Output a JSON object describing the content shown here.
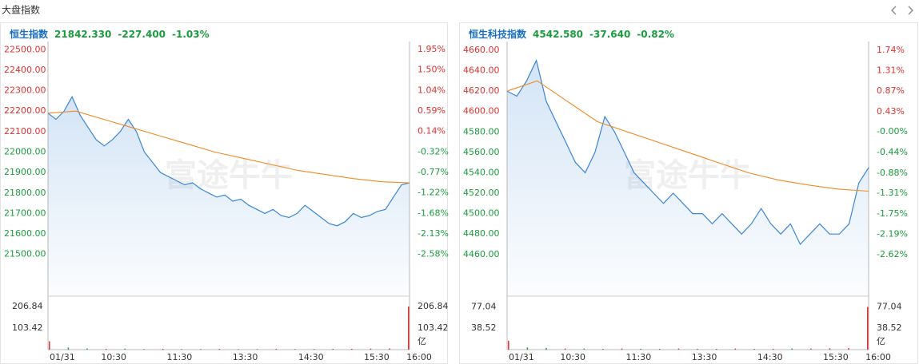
{
  "header": {
    "title": "大盘指数"
  },
  "watermark": "富途牛牛",
  "chart_data": [
    {
      "type": "line",
      "title": "恒生指数",
      "last": "21842.330",
      "change": "-227.400",
      "change_pct": "-1.03%",
      "x_labels": [
        "01/31",
        "10:30",
        "11:30",
        "13:30",
        "14:30",
        "15:30",
        "16:00"
      ],
      "ylim": [
        21300,
        22540
      ],
      "yticks": [
        {
          "value": 22500,
          "label": "22500.00"
        },
        {
          "value": 22400,
          "label": "22400.00"
        },
        {
          "value": 22300,
          "label": "22300.00"
        },
        {
          "value": 22200,
          "label": "22200.00"
        },
        {
          "value": 22100,
          "label": "22100.00"
        },
        {
          "value": 22000,
          "label": "22000.00"
        },
        {
          "value": 21900,
          "label": "21900.00"
        },
        {
          "value": 21800,
          "label": "21800.00"
        },
        {
          "value": 21700,
          "label": "21700.00"
        },
        {
          "value": 21600,
          "label": "21600.00"
        },
        {
          "value": 21500,
          "label": "21500.00"
        }
      ],
      "y2lim": [
        -3.49,
        2.13
      ],
      "y2ticks": [
        {
          "value": 1.95,
          "label": "1.95%"
        },
        {
          "value": 1.5,
          "label": "1.50%"
        },
        {
          "value": 1.04,
          "label": "1.04%"
        },
        {
          "value": 0.59,
          "label": "0.59%"
        },
        {
          "value": 0.14,
          "label": "0.14%"
        },
        {
          "value": -0.32,
          "label": "-0.32%"
        },
        {
          "value": -0.77,
          "label": "-0.77%"
        },
        {
          "value": -1.22,
          "label": "-1.22%"
        },
        {
          "value": -1.68,
          "label": "-1.68%"
        },
        {
          "value": -2.13,
          "label": "-2.13%"
        },
        {
          "value": -2.58,
          "label": "-2.58%"
        }
      ],
      "up_color": "#e0312f",
      "down_color": "#1a9c3c",
      "price": {
        "color": "#3a86d6",
        "values": [
          22190,
          22160,
          22200,
          22270,
          22180,
          22120,
          22060,
          22030,
          22060,
          22100,
          22160,
          22100,
          22000,
          21950,
          21900,
          21880,
          21860,
          21840,
          21850,
          21820,
          21800,
          21780,
          21790,
          21760,
          21770,
          21740,
          21720,
          21700,
          21720,
          21690,
          21680,
          21700,
          21740,
          21710,
          21680,
          21650,
          21640,
          21660,
          21700,
          21680,
          21690,
          21710,
          21720,
          21780,
          21840,
          21850
        ]
      },
      "average": {
        "color": "#f08a24",
        "values": [
          22190,
          22200,
          22160,
          22120,
          22080,
          22040,
          22000,
          21970,
          21940,
          21910,
          21890,
          21870,
          21855,
          21850
        ]
      },
      "volume": {
        "unit": "亿",
        "ylim": [
          0,
          253
        ],
        "yticks": [
          {
            "value": 206.84,
            "label": "206.84"
          },
          {
            "value": 103.42,
            "label": "103.42"
          }
        ],
        "values": [
          40,
          10,
          6,
          4,
          5,
          3,
          4,
          3,
          3,
          4,
          3,
          3,
          4,
          3,
          3,
          4,
          4,
          5,
          6,
          206.84
        ],
        "colors": [
          "#e0312f",
          "#1a9c3c",
          "#1a9c3c",
          "#e0312f",
          "#1a9c3c",
          "#1a9c3c",
          "#e0312f",
          "#1a9c3c",
          "#1a9c3c",
          "#e0312f",
          "#1a9c3c",
          "#1a9c3c",
          "#e0312f",
          "#1a9c3c",
          "#e0312f",
          "#1a9c3c",
          "#e0312f",
          "#e0312f",
          "#e0312f",
          "#e0312f"
        ]
      }
    },
    {
      "type": "line",
      "title": "恒生科技指数",
      "last": "4542.580",
      "change": "-37.640",
      "change_pct": "-0.82%",
      "x_labels": [
        "01/31",
        "10:30",
        "11:30",
        "13:30",
        "14:30",
        "15:30",
        "16:00"
      ],
      "ylim": [
        4420,
        4668.5
      ],
      "yticks": [
        {
          "value": 4660,
          "label": "4660.00"
        },
        {
          "value": 4640,
          "label": "4640.00"
        },
        {
          "value": 4620,
          "label": "4620.00"
        },
        {
          "value": 4600,
          "label": "4600.00"
        },
        {
          "value": 4580,
          "label": "4580.00"
        },
        {
          "value": 4560,
          "label": "4560.00"
        },
        {
          "value": 4540,
          "label": "4540.00"
        },
        {
          "value": 4520,
          "label": "4520.00"
        },
        {
          "value": 4500,
          "label": "4500.00"
        },
        {
          "value": 4480,
          "label": "4480.00"
        },
        {
          "value": 4460,
          "label": "4460.00"
        }
      ],
      "y2lim": [
        -3.49,
        1.93
      ],
      "y2ticks": [
        {
          "value": 1.74,
          "label": "1.74%"
        },
        {
          "value": 1.31,
          "label": "1.31%"
        },
        {
          "value": 0.87,
          "label": "0.87%"
        },
        {
          "value": 0.43,
          "label": "0.43%"
        },
        {
          "value": 0,
          "label": "-0.00%"
        },
        {
          "value": -0.44,
          "label": "-0.44%"
        },
        {
          "value": -0.88,
          "label": "-0.88%"
        },
        {
          "value": -1.31,
          "label": "-1.31%"
        },
        {
          "value": -1.75,
          "label": "-1.75%"
        },
        {
          "value": -2.19,
          "label": "-2.19%"
        },
        {
          "value": -2.62,
          "label": "-2.62%"
        }
      ],
      "up_color": "#e0312f",
      "down_color": "#1a9c3c",
      "price": {
        "color": "#3a86d6",
        "values": [
          4620,
          4615,
          4630,
          4650,
          4610,
          4590,
          4570,
          4550,
          4540,
          4560,
          4595,
          4580,
          4560,
          4540,
          4530,
          4520,
          4510,
          4520,
          4510,
          4500,
          4500,
          4490,
          4500,
          4490,
          4480,
          4490,
          4505,
          4490,
          4480,
          4490,
          4470,
          4480,
          4490,
          4480,
          4480,
          4490,
          4530,
          4545
        ]
      },
      "average": {
        "color": "#f08a24",
        "values": [
          4620,
          4630,
          4610,
          4590,
          4580,
          4570,
          4560,
          4550,
          4540,
          4533,
          4528,
          4524,
          4522
        ]
      },
      "volume": {
        "unit": "亿",
        "ylim": [
          0,
          95
        ],
        "yticks": [
          {
            "value": 77.04,
            "label": "77.04"
          },
          {
            "value": 38.52,
            "label": "38.52"
          }
        ],
        "values": [
          16,
          4,
          3,
          2,
          2,
          1.5,
          2,
          1.5,
          1.5,
          2,
          1.5,
          1.5,
          2,
          1.5,
          1.5,
          2,
          2,
          2.5,
          3,
          77.04
        ],
        "colors": [
          "#e0312f",
          "#1a9c3c",
          "#1a9c3c",
          "#e0312f",
          "#1a9c3c",
          "#1a9c3c",
          "#e0312f",
          "#1a9c3c",
          "#1a9c3c",
          "#e0312f",
          "#1a9c3c",
          "#1a9c3c",
          "#e0312f",
          "#1a9c3c",
          "#e0312f",
          "#1a9c3c",
          "#e0312f",
          "#e0312f",
          "#e0312f",
          "#e0312f"
        ]
      }
    }
  ]
}
